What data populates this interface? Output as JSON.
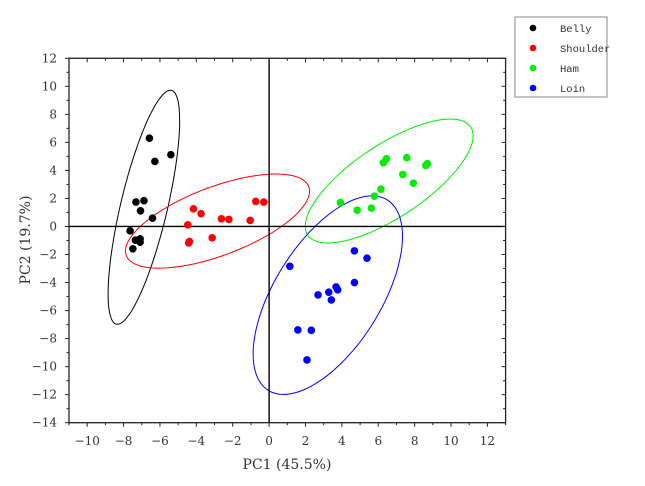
{
  "chart_data": {
    "type": "scatter",
    "xlabel": "PC1 (45.5%)",
    "ylabel": "PC2 (19.7%)",
    "xlim": [
      -11,
      13
    ],
    "ylim": [
      -14,
      12
    ],
    "xticks": [
      -10,
      -8,
      -6,
      -4,
      -2,
      0,
      2,
      4,
      6,
      8,
      10,
      12
    ],
    "yticks": [
      -14,
      -12,
      -10,
      -8,
      -6,
      -4,
      -2,
      0,
      2,
      4,
      6,
      8,
      10,
      12
    ],
    "grid": false,
    "zero_lines": true,
    "legend_position": "outside-top-right",
    "confidence_ellipse": 0.95,
    "series": [
      {
        "name": "Belly",
        "color": "#000000",
        "x": [
          -6.58,
          -5.4,
          -6.28,
          -7.32,
          -6.88,
          -7.07,
          -6.41,
          -7.64,
          -7.35,
          -7.09,
          -7.09,
          -7.49
        ],
        "y": [
          6.3,
          5.12,
          4.64,
          1.74,
          1.84,
          1.12,
          0.59,
          -0.31,
          -0.98,
          -0.88,
          -1.12,
          -1.59
        ]
      },
      {
        "name": "Shoulder",
        "color": "#ff0000",
        "x": [
          -4.16,
          -3.74,
          -4.47,
          -4.38,
          -4.42,
          -3.13,
          -2.62,
          -2.21,
          -1.04,
          -0.73,
          -0.29
        ],
        "y": [
          1.26,
          0.91,
          0.12,
          -1.07,
          -1.17,
          -0.81,
          0.55,
          0.5,
          0.43,
          1.79,
          1.74
        ]
      },
      {
        "name": "Ham",
        "color": "#00ee00",
        "x": [
          3.92,
          4.84,
          5.62,
          5.79,
          6.15,
          6.28,
          6.45,
          7.57,
          7.35,
          7.93,
          8.61,
          8.7
        ],
        "y": [
          1.71,
          1.16,
          1.31,
          2.16,
          2.66,
          4.55,
          4.84,
          4.91,
          3.71,
          3.09,
          4.36,
          4.48
        ]
      },
      {
        "name": "Loin",
        "color": "#0000ff",
        "x": [
          4.69,
          5.38,
          1.14,
          4.69,
          2.69,
          3.28,
          3.68,
          3.77,
          3.42,
          1.58,
          2.32,
          2.08
        ],
        "y": [
          -1.74,
          -2.26,
          -2.84,
          -4.0,
          -4.88,
          -4.69,
          -4.31,
          -4.52,
          -5.24,
          -7.38,
          -7.41,
          -9.52
        ]
      }
    ]
  }
}
